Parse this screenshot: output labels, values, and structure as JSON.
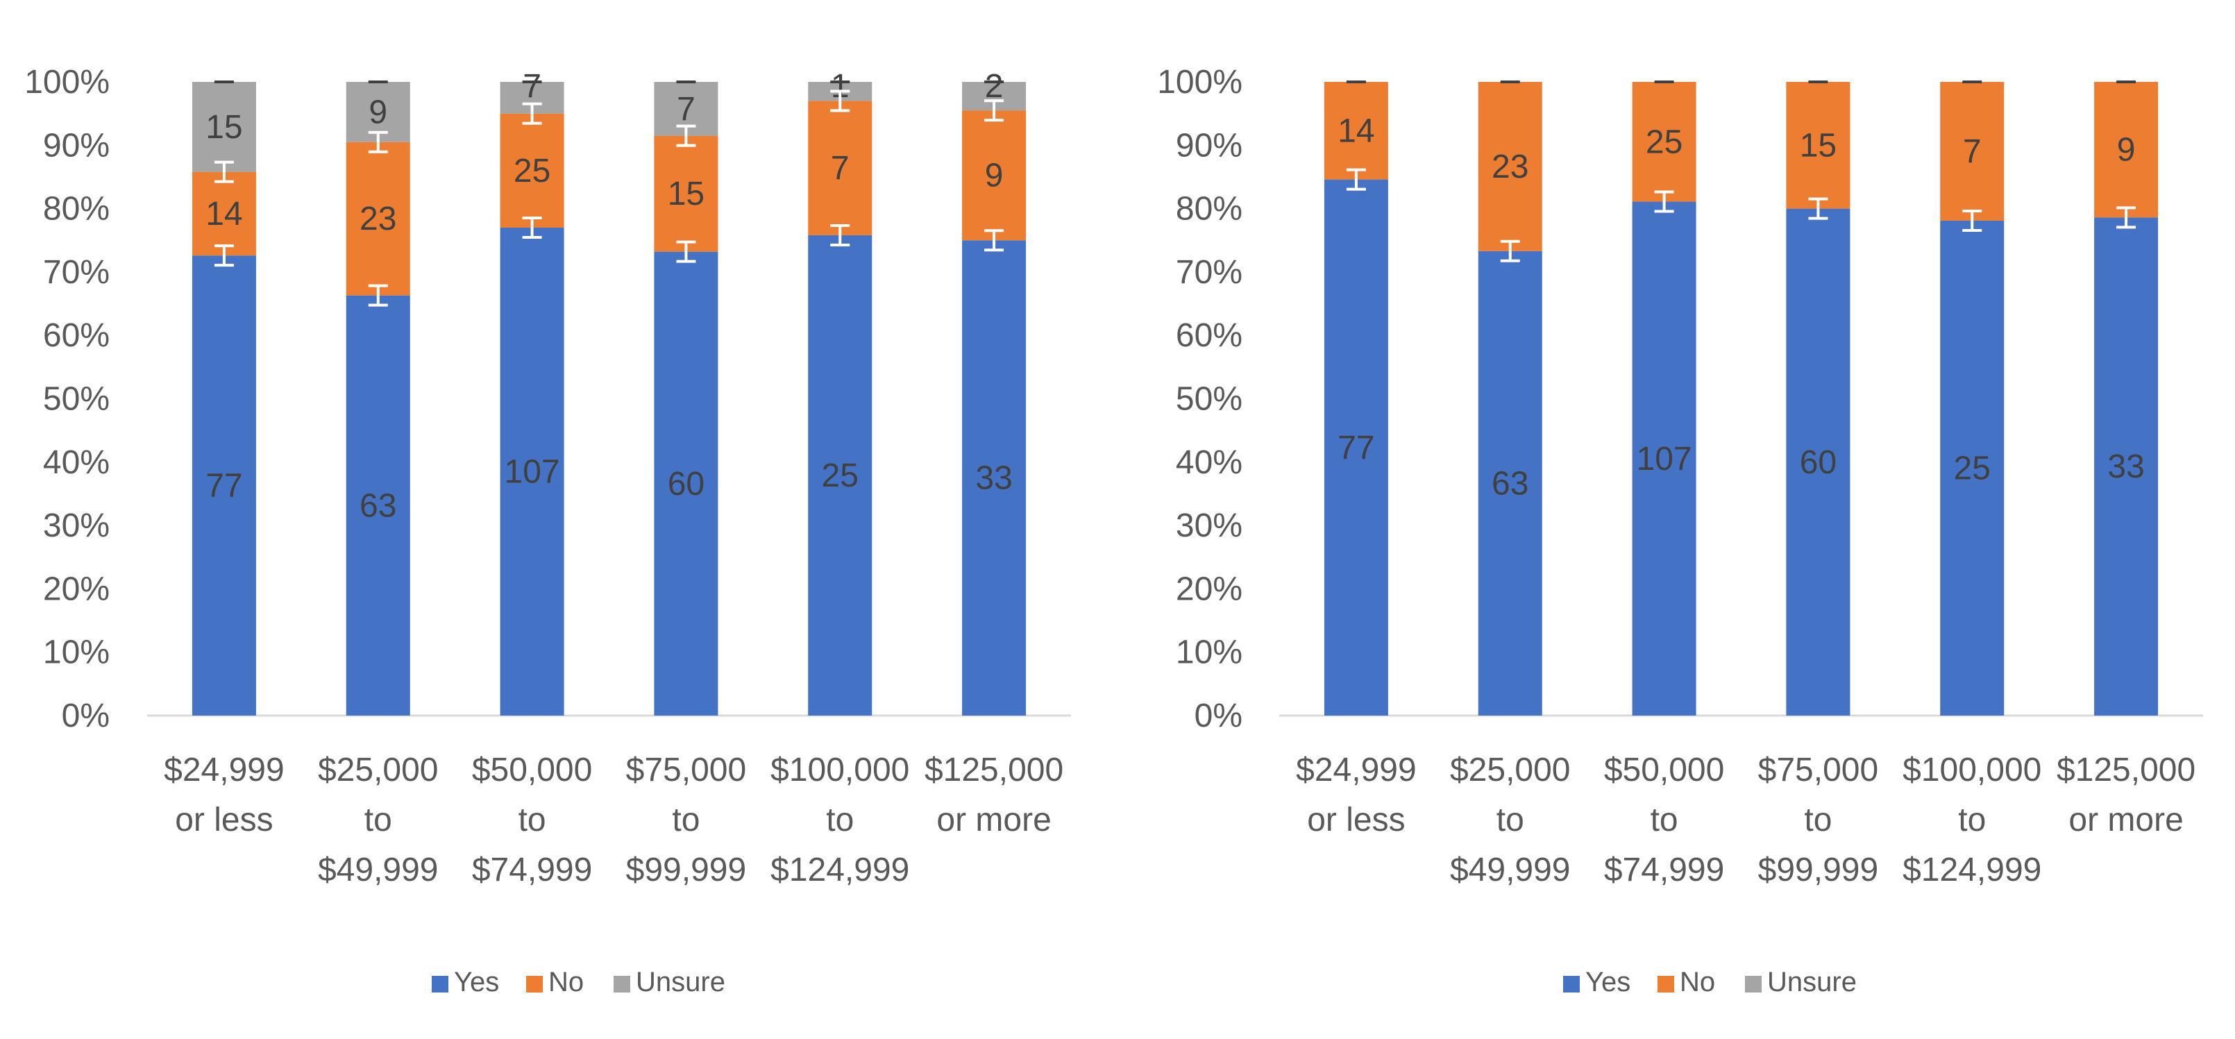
{
  "colors": {
    "yes": "#4472C4",
    "no": "#ED7D31",
    "unsure": "#A5A5A5",
    "axis_text": "#595959",
    "label_text": "#404040",
    "axis_line": "#D9D9D9",
    "error_bar": "#FFFFFF"
  },
  "chart_data": [
    {
      "type": "bar",
      "stacked": true,
      "percent_stacked": true,
      "title": "",
      "xlabel": "",
      "ylabel": "",
      "ylim": [
        0,
        100
      ],
      "ytick_labels": [
        "0%",
        "10%",
        "20%",
        "30%",
        "40%",
        "50%",
        "60%",
        "70%",
        "80%",
        "90%",
        "100%"
      ],
      "categories": [
        [
          "$24,999",
          "or less"
        ],
        [
          "$25,000",
          "to",
          "$49,999"
        ],
        [
          "$50,000",
          "to",
          "$74,999"
        ],
        [
          "$75,000",
          "to",
          "$99,999"
        ],
        [
          "$100,000",
          "to",
          "$124,999"
        ],
        [
          "$125,000",
          "or more"
        ]
      ],
      "series": [
        {
          "name": "Yes",
          "color_key": "yes",
          "labels": [
            "77",
            "63",
            "107",
            "60",
            "25",
            "33"
          ],
          "percent": [
            72.6,
            66.3,
            77.0,
            73.2,
            75.8,
            75.0
          ]
        },
        {
          "name": "No",
          "color_key": "no",
          "labels": [
            "14",
            "23",
            "25",
            "15",
            "7",
            "9"
          ],
          "percent": [
            13.2,
            24.2,
            18.0,
            18.3,
            21.2,
            20.5
          ]
        },
        {
          "name": "Unsure",
          "color_key": "unsure",
          "labels": [
            "15",
            "9",
            "7",
            "7",
            "1",
            "2"
          ],
          "percent": [
            14.2,
            9.5,
            5.0,
            8.5,
            3.0,
            4.5
          ]
        }
      ],
      "error_bars": true,
      "legend": {
        "position": "bottom",
        "items": [
          "Yes",
          "No",
          "Unsure"
        ]
      }
    },
    {
      "type": "bar",
      "stacked": true,
      "percent_stacked": true,
      "title": "",
      "xlabel": "",
      "ylabel": "",
      "ylim": [
        0,
        100
      ],
      "ytick_labels": [
        "0%",
        "10%",
        "20%",
        "30%",
        "40%",
        "50%",
        "60%",
        "70%",
        "80%",
        "90%",
        "100%"
      ],
      "categories": [
        [
          "$24,999",
          "or less"
        ],
        [
          "$25,000",
          "to",
          "$49,999"
        ],
        [
          "$50,000",
          "to",
          "$74,999"
        ],
        [
          "$75,000",
          "to",
          "$99,999"
        ],
        [
          "$100,000",
          "to",
          "$124,999"
        ],
        [
          "$125,000",
          "or more"
        ]
      ],
      "series": [
        {
          "name": "Yes",
          "color_key": "yes",
          "labels": [
            "77",
            "63",
            "107",
            "60",
            "25",
            "33"
          ],
          "percent": [
            84.6,
            73.3,
            81.1,
            80.0,
            78.1,
            78.6
          ]
        },
        {
          "name": "No",
          "color_key": "no",
          "labels": [
            "14",
            "23",
            "25",
            "15",
            "7",
            "9"
          ],
          "percent": [
            15.4,
            26.7,
            18.9,
            20.0,
            21.9,
            21.4
          ]
        },
        {
          "name": "Unsure",
          "color_key": "unsure",
          "labels": [],
          "percent": [
            0,
            0,
            0,
            0,
            0,
            0
          ]
        }
      ],
      "error_bars": true,
      "legend": {
        "position": "bottom",
        "items": [
          "Yes",
          "No",
          "Unsure"
        ]
      }
    }
  ]
}
